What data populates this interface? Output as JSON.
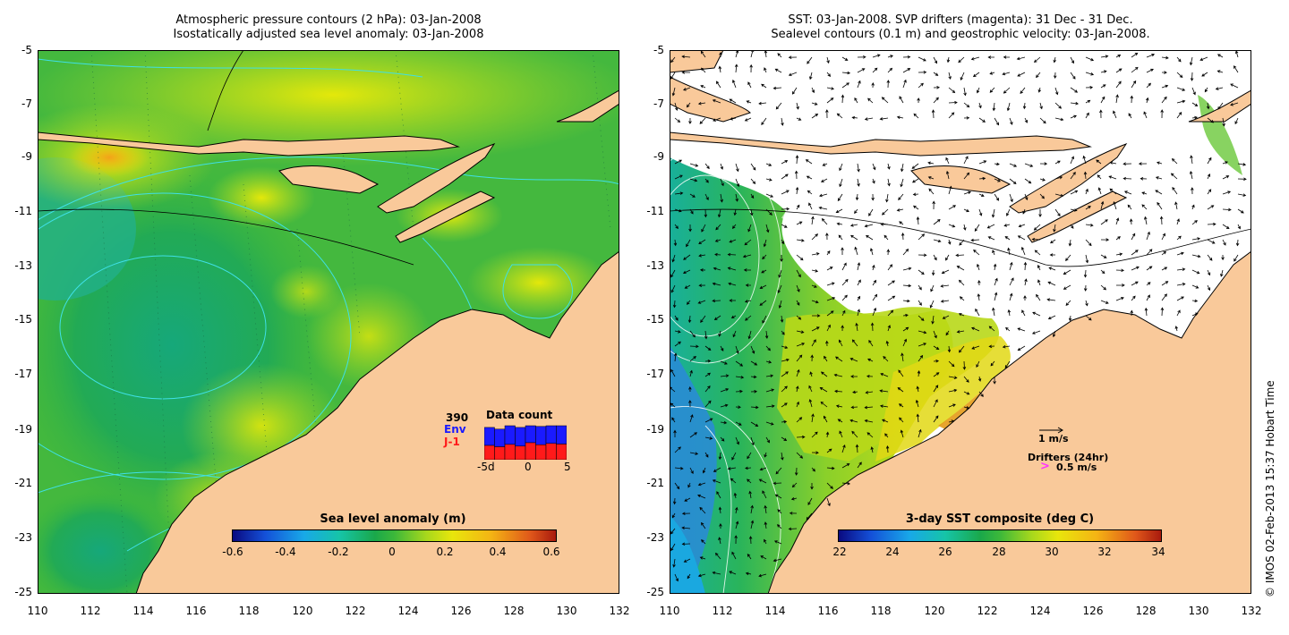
{
  "left_panel": {
    "title_line1": "Atmospheric pressure contours (2 hPa): 03-Jan-2008",
    "title_line2": "Isostatically adjusted sea level anomaly: 03-Jan-2008",
    "y_ticks": [
      "-5",
      "-7",
      "-9",
      "-11",
      "-13",
      "-15",
      "-17",
      "-19",
      "-21",
      "-23",
      "-25"
    ],
    "x_ticks": [
      "110",
      "112",
      "114",
      "116",
      "118",
      "120",
      "122",
      "124",
      "126",
      "128",
      "130",
      "132"
    ],
    "colorbar_title": "Sea level anomaly (m)",
    "colorbar_ticks": [
      "-0.6",
      "-0.4",
      "-0.2",
      "0",
      "0.2",
      "0.4",
      "0.6"
    ],
    "data_count": {
      "count": "390",
      "env_label": "Env",
      "j1_label": "J-1",
      "title": "Data count",
      "ticks": [
        "-5d",
        "0",
        "5"
      ],
      "env_values": [
        0.95,
        0.9,
        1.0,
        0.95,
        1.0,
        0.98,
        1.0,
        1.0
      ],
      "j1_values": [
        0.42,
        0.38,
        0.45,
        0.4,
        0.5,
        0.44,
        0.48,
        0.46
      ]
    }
  },
  "right_panel": {
    "title_line1": "SST: 03-Jan-2008. SVP drifters (magenta): 31 Dec - 31 Dec.",
    "title_line2": "Sealevel contours (0.1 m) and geostrophic velocity: 03-Jan-2008.",
    "y_ticks": [
      "-5",
      "-7",
      "-9",
      "-11",
      "-13",
      "-15",
      "-17",
      "-19",
      "-21",
      "-23",
      "-25"
    ],
    "x_ticks": [
      "110",
      "112",
      "114",
      "116",
      "118",
      "120",
      "122",
      "124",
      "126",
      "128",
      "130",
      "132"
    ],
    "colorbar_title": "3-day SST composite (deg C)",
    "colorbar_ticks": [
      "22",
      "24",
      "26",
      "28",
      "30",
      "32",
      "34"
    ],
    "velocity_scale_label": "1 m/s",
    "drifters_label": "Drifters (24hr)",
    "drifter_scale_label": "0.5 m/s"
  },
  "credit": "© IMOS 02-Feb-2013 15:37 Hobart Time",
  "colors": {
    "land": "#f9c99a",
    "contour_cyan": "#3fe0e6",
    "sla_low": "#1aa06a",
    "sla_mid": "#50c040",
    "sla_high": "#d6e80c",
    "sla_peak": "#f2a21a",
    "drifter": "#ff33ff"
  }
}
